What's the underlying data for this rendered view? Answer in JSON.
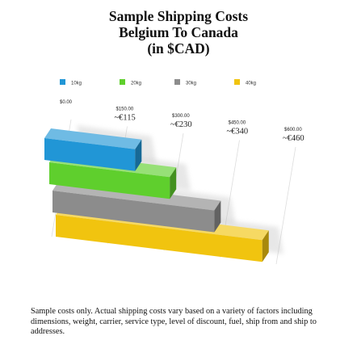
{
  "title": {
    "line1": "Sample Shipping Costs",
    "line2": "Belgium To Canada",
    "line3": "(in $CAD)"
  },
  "footnote": "Sample costs only. Actual shipping costs vary based on a variety of factors including dimensions, weight, carrier, service type, level of discount, fuel, ship from and ship to addresses.",
  "chart_data": {
    "type": "bar",
    "orientation": "horizontal-3d",
    "title": "Sample Shipping Costs Belgium To Canada (in $CAD)",
    "categories": [
      "10kg",
      "20kg",
      "30kg",
      "40kg"
    ],
    "values": [
      240,
      350,
      470,
      600
    ],
    "colors": [
      "#2196d6",
      "#5fcf2d",
      "#8c8c8c",
      "#f1c40f"
    ],
    "axis": {
      "range": [
        0,
        600
      ],
      "ticks": [
        {
          "value": 0,
          "usd": "$0.00",
          "eur": ""
        },
        {
          "value": 150,
          "usd": "$150.00",
          "eur": "~€115"
        },
        {
          "value": 300,
          "usd": "$300.00",
          "eur": "~€230"
        },
        {
          "value": 450,
          "usd": "$450.00",
          "eur": "~€340"
        },
        {
          "value": 600,
          "usd": "$600.00",
          "eur": "~€460"
        }
      ]
    },
    "legend": {
      "position": "top",
      "items": [
        "10kg",
        "20kg",
        "30kg",
        "40kg"
      ]
    },
    "grid": false
  }
}
